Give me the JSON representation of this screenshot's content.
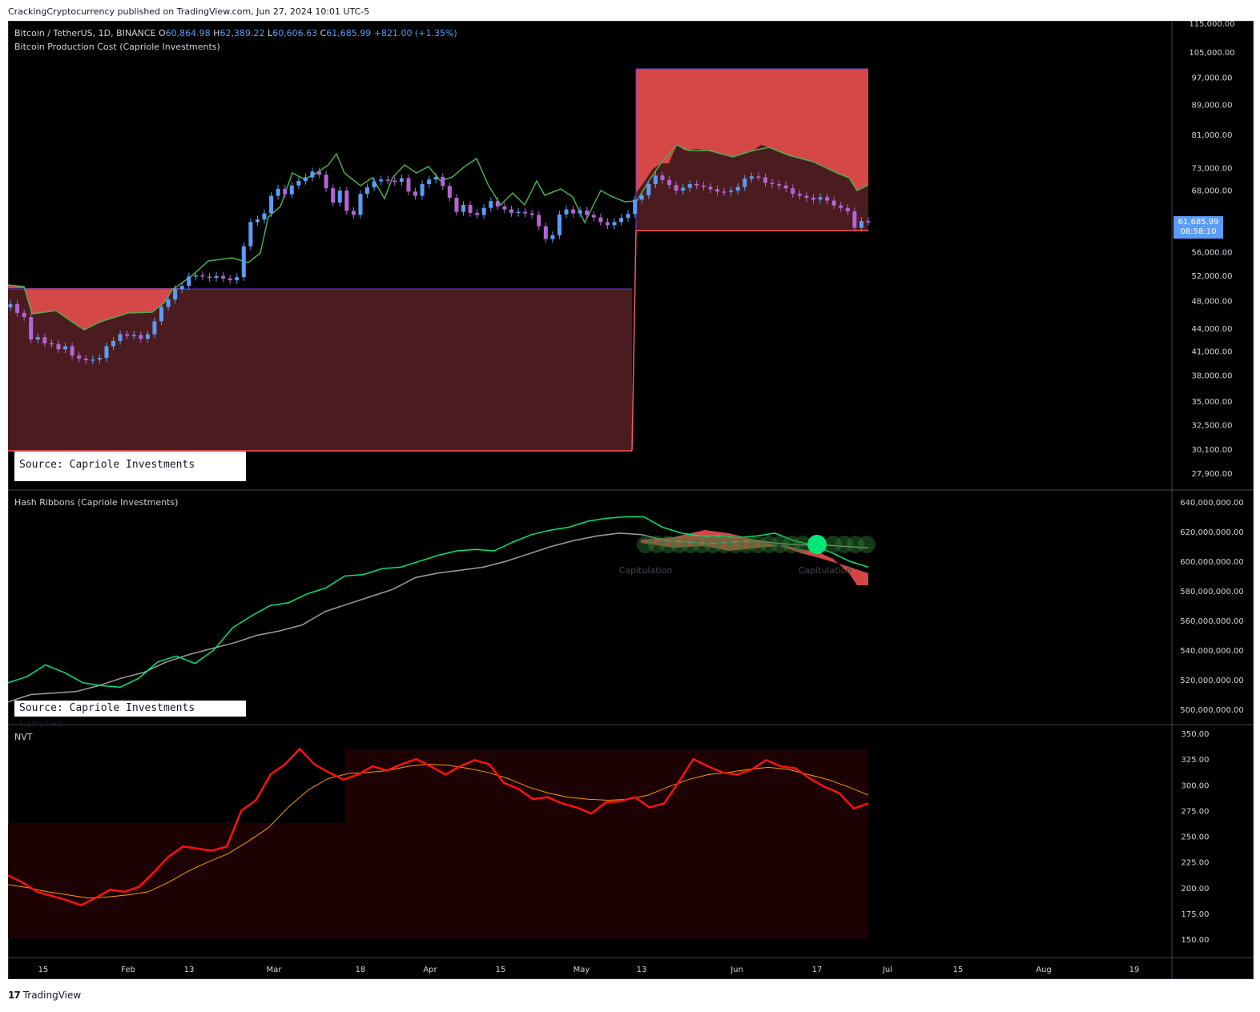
{
  "header": {
    "publish_line": "CrackingCryptocurrency published on TradingView.com, Jun 27, 2024 10:01 UTC-5"
  },
  "main_pane": {
    "symbol": "Bitcoin / TetherUS, 1D, BINANCE",
    "ohlc": {
      "o_label": "O",
      "o": "60,864.98",
      "h_label": "H",
      "h": "62,389.22",
      "l_label": "L",
      "l": "60,606.63",
      "c_label": "C",
      "c": "61,685.99",
      "change": "+821.00 (+1.35%)"
    },
    "indicator_title": "Bitcoin Production Cost (Capriole Investments)",
    "source_label": "Source: Capriole Investments",
    "last_price": "61,685.99",
    "countdown": "08:58:10"
  },
  "hash_pane": {
    "title": "Hash Ribbons (Capriole Investments)",
    "source_label": "Source: Capriole Investments Limited",
    "annotations": [
      "Capitulation",
      "Capitulation"
    ]
  },
  "nvt_pane": {
    "title": "NVT"
  },
  "footer": {
    "logo": "17",
    "brand": "TradingView"
  },
  "colors": {
    "background": "#000000",
    "bull": "#5b9cf6",
    "bear": "#b266d6",
    "cost_fill": "#4a1c20",
    "cost_band": "#dd4a4a",
    "ma_green": "#4caf50",
    "hash_fast": "#00e676",
    "hash_slow": "#9e9e9e",
    "nvt_line": "#ff1111",
    "nvt_ma": "#ff9800"
  },
  "chart_data": [
    {
      "type": "candlestick",
      "title": "Bitcoin / TetherUS, 1D, BINANCE",
      "x_ticks": [
        "15",
        "Feb",
        "13",
        "Mar",
        "18",
        "Apr",
        "15",
        "May",
        "13",
        "Jun",
        "17",
        "Jul",
        "15",
        "Aug",
        "19"
      ],
      "y_ticks": [
        "115,000.00",
        "105,000.00",
        "97,000.00",
        "89,000.00",
        "81,000.00",
        "73,000.00",
        "68,000.00",
        "56,000.00",
        "52,000.00",
        "48,000.00",
        "44,000.00",
        "41,000.00",
        "38,000.00",
        "35,000.00",
        "32,500.00",
        "30,100.00",
        "27,900.00"
      ],
      "y_scale": "log",
      "close_series": [
        47500,
        46200,
        45600,
        42500,
        42800,
        42000,
        41900,
        41200,
        41600,
        40400,
        40000,
        39800,
        39900,
        40100,
        41600,
        42300,
        43200,
        43000,
        43100,
        42600,
        43200,
        45000,
        47100,
        48200,
        49800,
        50300,
        51800,
        52000,
        51800,
        51600,
        51900,
        51500,
        51200,
        51700,
        57000,
        61500,
        62000,
        63200,
        66800,
        68300,
        67100,
        69000,
        70000,
        70800,
        72100,
        71400,
        68400,
        65400,
        67900,
        63700,
        62900,
        67200,
        68600,
        69900,
        70300,
        70100,
        69800,
        70600,
        67700,
        66800,
        69300,
        70300,
        70900,
        68900,
        66400,
        63500,
        64900,
        63300,
        62900,
        64300,
        65700,
        64600,
        64000,
        63300,
        63500,
        63200,
        62900,
        60700,
        58300,
        59000,
        63000,
        64000,
        63200,
        63800,
        62900,
        62400,
        61500,
        60900,
        61500,
        62300,
        63100,
        66000,
        66900,
        69300,
        71200,
        70200,
        69100,
        67900,
        68500,
        69300,
        69000,
        68700,
        68200,
        67700,
        67600,
        67900,
        68700,
        70500,
        71000,
        70800,
        69600,
        69300,
        69000,
        68400,
        67200,
        66800,
        66400,
        66000,
        66500,
        65800,
        64800,
        64300,
        63600,
        60400,
        61700,
        61686
      ],
      "production_cost_levels": [
        {
          "period": "Jan–May 2024",
          "low": 30100,
          "high": 50000
        },
        {
          "period": "May–Jun 2024",
          "low": 60000,
          "high": 100000
        }
      ]
    },
    {
      "type": "line",
      "title": "Hash Ribbons (Capriole Investments)",
      "y_ticks": [
        "640,000,000.00",
        "620,000,000.00",
        "600,000,000.00",
        "580,000,000.00",
        "560,000,000.00",
        "540,000,000.00",
        "520,000,000.00",
        "500,000,000.00"
      ],
      "series": [
        {
          "values": [
            518,
            522,
            530,
            525,
            518,
            516,
            515,
            521,
            532,
            536,
            531,
            540,
            555,
            563,
            570,
            572,
            578,
            582,
            590,
            591,
            595,
            596,
            600,
            604,
            607,
            608,
            607,
            613,
            618,
            621,
            623,
            627,
            629,
            630,
            630,
            623,
            619,
            617,
            617,
            616,
            617,
            619,
            614,
            611,
            606,
            600,
            596
          ]
        },
        {
          "values": [
            505,
            510,
            511,
            512,
            516,
            521,
            525,
            532,
            537,
            541,
            545,
            550,
            553,
            557,
            566,
            571,
            576,
            581,
            589,
            592,
            594,
            596,
            600,
            605,
            610,
            614,
            617,
            619,
            618,
            614,
            613,
            612,
            613,
            614,
            612,
            611,
            611,
            610,
            609
          ]
        }
      ]
    },
    {
      "type": "line",
      "title": "NVT",
      "y_ticks": [
        "350.00",
        "325.00",
        "300.00",
        "275.00",
        "250.00",
        "225.00",
        "200.00",
        "175.00",
        "150.00"
      ],
      "series": [
        {
          "values": [
            212,
            205,
            196,
            192,
            188,
            183,
            190,
            198,
            196,
            201,
            215,
            230,
            240,
            238,
            236,
            240,
            275,
            285,
            310,
            320,
            335,
            320,
            312,
            305,
            310,
            318,
            314,
            320,
            325,
            318,
            310,
            318,
            324,
            320,
            302,
            296,
            286,
            288,
            282,
            278,
            272,
            283,
            284,
            288,
            278,
            282,
            303,
            325,
            318,
            312,
            310,
            315,
            324,
            318,
            316,
            306,
            298,
            292,
            277,
            282
          ]
        },
        {
          "values": [
            203,
            200,
            196,
            193,
            190,
            191,
            193,
            196,
            205,
            216,
            225,
            233,
            245,
            258,
            278,
            295,
            306,
            311,
            312,
            314,
            318,
            320,
            319,
            316,
            312,
            306,
            298,
            292,
            288,
            286,
            285,
            286,
            290,
            298,
            305,
            310,
            312,
            315,
            317,
            315,
            310,
            305,
            298,
            290
          ]
        }
      ]
    }
  ]
}
